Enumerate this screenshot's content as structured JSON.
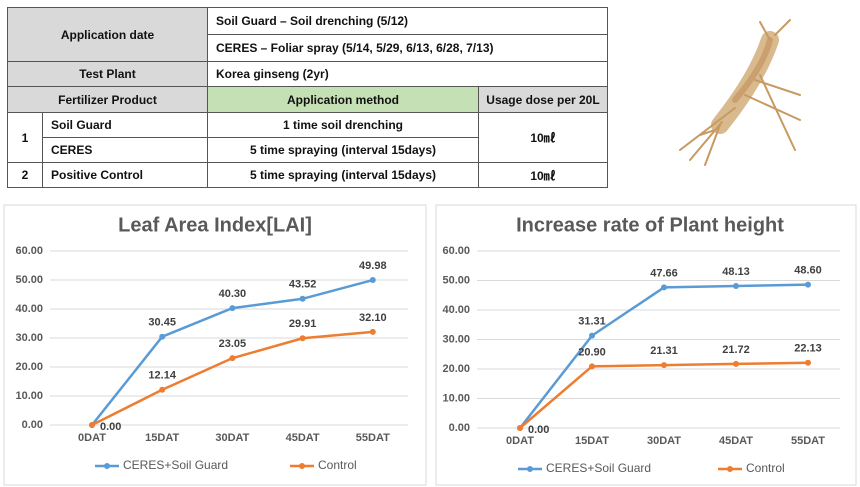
{
  "table": {
    "rows": [
      [
        "Application date",
        "Soil Guard – Soil drenching (5/12)"
      ],
      [
        "CERES – Foliar spray (5/14, 5/29, 6/13, 6/28, 7/13)"
      ],
      [
        "Test Plant",
        "Korea ginseng (2yr)"
      ],
      [
        "Fertilizer Product",
        "Application method",
        "Usage dose per 20L"
      ],
      [
        "1",
        "Soil Guard",
        "1 time soil drenching",
        "10㎖"
      ],
      [
        "CERES",
        "5 time spraying (interval 15days)"
      ],
      [
        "2",
        "Positive Control",
        "5 time spraying (interval 15days)",
        "10㎖"
      ]
    ]
  },
  "chart_data": [
    {
      "type": "line",
      "title": "Leaf Area Index[LAI]",
      "categories": [
        "0DAT",
        "15DAT",
        "30DAT",
        "45DAT",
        "55DAT"
      ],
      "series": [
        {
          "name": "CERES+Soil Guard",
          "color": "#5b9bd5",
          "values": [
            0,
            30.45,
            40.3,
            43.52,
            49.98
          ],
          "value_labels": [
            "0.00",
            "30.45",
            "40.30",
            "43.52",
            "49.98"
          ]
        },
        {
          "name": "Control",
          "color": "#ed7d31",
          "values": [
            0,
            12.14,
            23.05,
            29.91,
            32.1
          ],
          "value_labels": [
            null,
            "12.14",
            "23.05",
            "29.91",
            "32.10"
          ]
        }
      ],
      "ylim": [
        0,
        60
      ],
      "yticks": [
        {
          "value": 0,
          "label": "0.00"
        },
        {
          "value": 10,
          "label": "10.00"
        },
        {
          "value": 20,
          "label": "20.00"
        },
        {
          "value": 30,
          "label": "30.00"
        },
        {
          "value": 40,
          "label": "40.00"
        },
        {
          "value": 50,
          "label": "50.00"
        },
        {
          "value": 60,
          "label": "60.00"
        }
      ],
      "grid": true,
      "legend": "bottom"
    },
    {
      "type": "line",
      "title": "Increase rate of Plant height",
      "categories": [
        "0DAT",
        "15DAT",
        "30DAT",
        "45DAT",
        "55DAT"
      ],
      "series": [
        {
          "name": "CERES+Soil Guard",
          "color": "#5b9bd5",
          "values": [
            0,
            31.31,
            47.66,
            48.13,
            48.6
          ],
          "value_labels": [
            "0.00",
            "31.31",
            "47.66",
            "48.13",
            "48.60"
          ]
        },
        {
          "name": "Control",
          "color": "#ed7d31",
          "values": [
            0,
            20.9,
            21.31,
            21.72,
            22.13
          ],
          "value_labels": [
            null,
            "20.90",
            "21.31",
            "21.72",
            "22.13"
          ]
        }
      ],
      "ylim": [
        0,
        60
      ],
      "yticks": [
        {
          "value": 0,
          "label": "0.00"
        },
        {
          "value": 10,
          "label": "10.00"
        },
        {
          "value": 20,
          "label": "20.00"
        },
        {
          "value": 30,
          "label": "30.00"
        },
        {
          "value": 40,
          "label": "40.00"
        },
        {
          "value": 50,
          "label": "50.00"
        },
        {
          "value": 60,
          "label": "60.00"
        }
      ],
      "grid": true,
      "legend": "bottom"
    }
  ]
}
